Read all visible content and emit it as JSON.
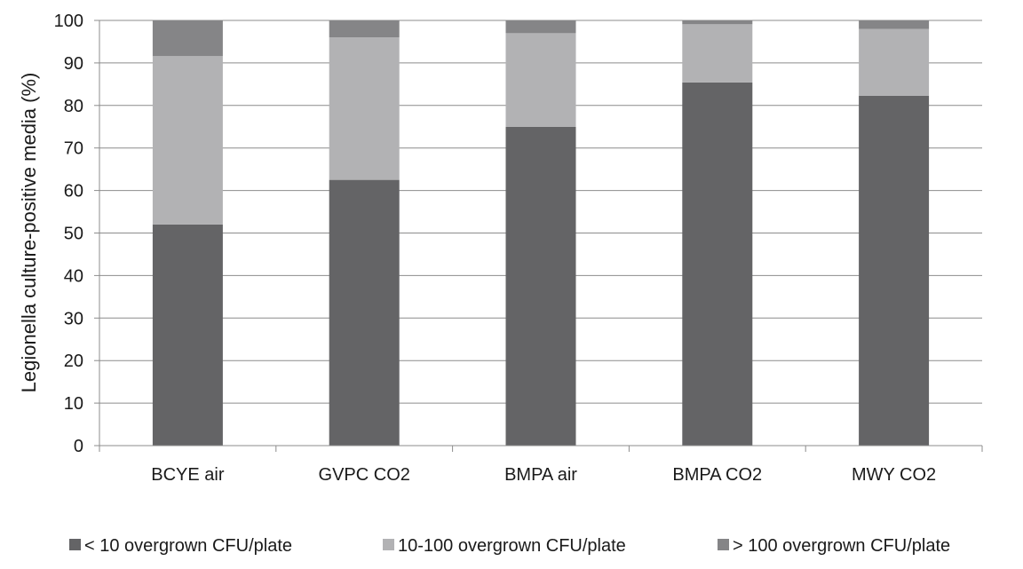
{
  "chart_data": {
    "type": "bar",
    "stacked": true,
    "title": "",
    "xlabel": "",
    "ylabel": "Legionella culture-positive media (%)",
    "ylim": [
      0,
      100
    ],
    "yticks": [
      0,
      10,
      20,
      30,
      40,
      50,
      60,
      70,
      80,
      90,
      100
    ],
    "grid": true,
    "legend_position": "bottom",
    "categories": [
      "BCYE air",
      "GVPC CO2",
      "BMPA air",
      "BMPA CO2",
      "MWY CO2"
    ],
    "series": [
      {
        "name": "< 10 overgrown CFU/plate",
        "color": "#646466",
        "values": [
          52,
          62.5,
          75,
          85.4,
          82.3
        ]
      },
      {
        "name": "10-100 overgrown CFU/plate",
        "color": "#b2b2b4",
        "values": [
          39.6,
          33.5,
          22,
          13.7,
          15.7
        ]
      },
      {
        "name": "> 100 overgrown CFU/plate",
        "color": "#858587",
        "values": [
          8.4,
          4,
          3,
          0.9,
          2
        ]
      }
    ]
  }
}
